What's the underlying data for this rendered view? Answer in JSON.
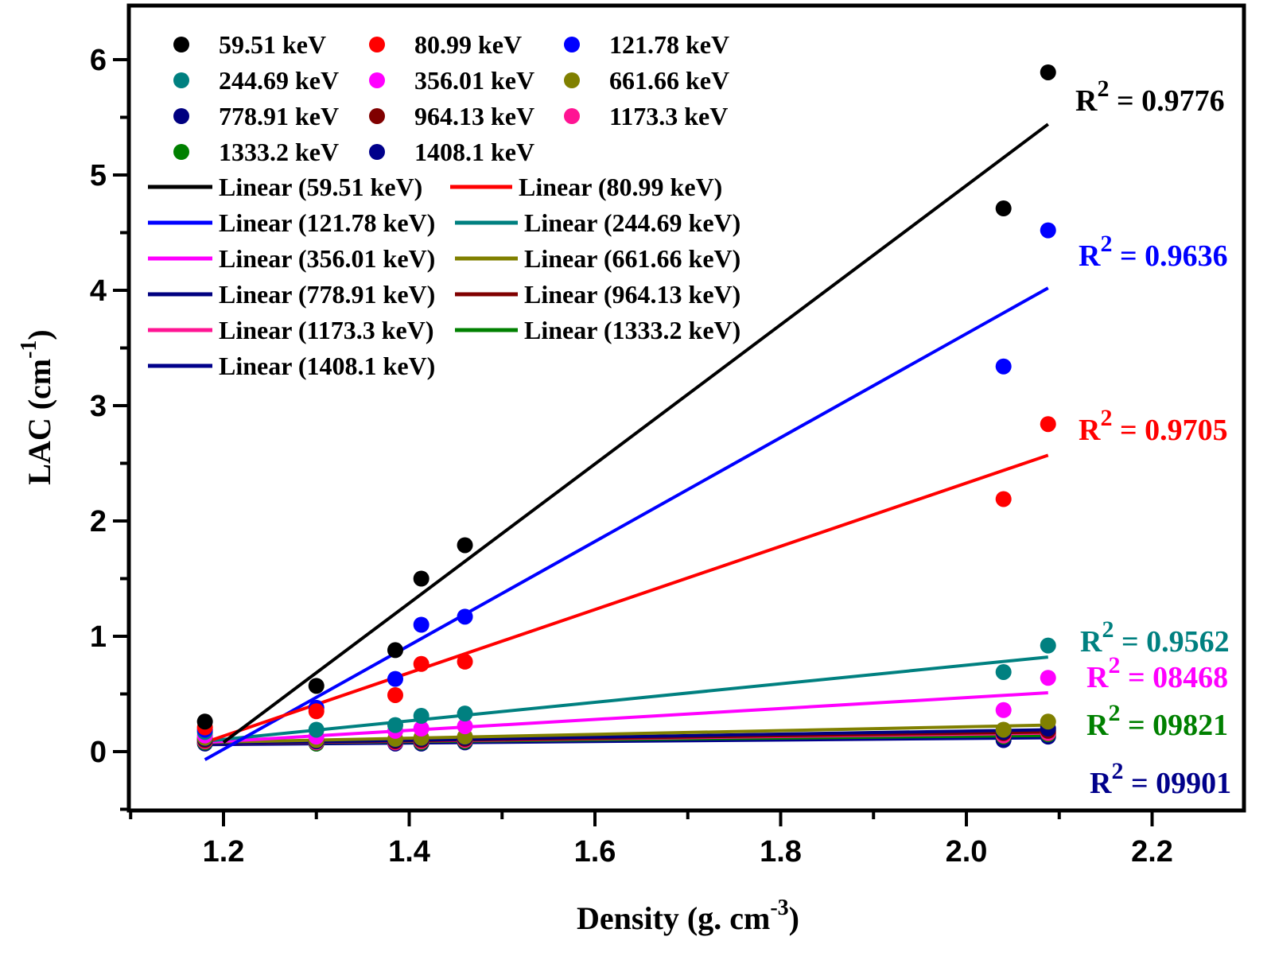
{
  "chart_data": {
    "type": "scatter",
    "xlabel": "Density (g. cm",
    "xlabel_sup": "-3",
    "xlabel_end": ")",
    "ylabel": "LAC (cm",
    "ylabel_sup": "-1",
    "ylabel_end": ")",
    "xlim": [
      1.1,
      2.3
    ],
    "ylim": [
      -0.5,
      6.5
    ],
    "x_ticks": [
      "1.2",
      "1.4",
      "1.6",
      "1.8",
      "2.0",
      "2.2"
    ],
    "y_ticks": [
      "0",
      "1",
      "2",
      "3",
      "4",
      "5",
      "6"
    ],
    "x_tick_values": [
      1.2,
      1.4,
      1.6,
      1.8,
      2.0,
      2.2
    ],
    "y_tick_values": [
      0,
      1,
      2,
      3,
      4,
      5,
      6
    ],
    "x": [
      1.18,
      1.3,
      1.385,
      1.413,
      1.46,
      2.04,
      2.088
    ],
    "legend_position": "top-left",
    "grid": false,
    "series": [
      {
        "name": "59.51 keV",
        "color": "#000000",
        "values": [
          0.26,
          0.57,
          0.88,
          1.5,
          1.79,
          4.71,
          5.89
        ],
        "fit_name": "Linear (59.51 keV)",
        "fit": [
          [
            1.2,
            0.08
          ],
          [
            2.088,
            5.44
          ]
        ],
        "r2_label": "R",
        "r2_sup": "2",
        "r2_value": " = 0.9776"
      },
      {
        "name": "80.99 keV",
        "color": "#ff0000",
        "values": [
          0.21,
          0.35,
          0.49,
          0.76,
          0.78,
          2.19,
          2.84
        ],
        "fit_name": "Linear (80.99 keV)",
        "fit": [
          [
            1.18,
            0.08
          ],
          [
            2.088,
            2.57
          ]
        ],
        "r2_label": "R",
        "r2_sup": "2",
        "r2_value": " = 0.9705"
      },
      {
        "name": "121.78 keV",
        "color": "#0000ff",
        "values": [
          0.19,
          0.38,
          0.63,
          1.1,
          1.17,
          3.34,
          4.52
        ],
        "fit_name": "Linear (121.78 keV)",
        "fit": [
          [
            1.18,
            -0.07
          ],
          [
            2.088,
            4.02
          ]
        ],
        "r2_label": "R",
        "r2_sup": "2",
        "r2_value": " = 0.9636"
      },
      {
        "name": "244.69 keV",
        "color": "#008080",
        "values": [
          0.17,
          0.19,
          0.23,
          0.31,
          0.33,
          0.69,
          0.92
        ],
        "fit_name": "Linear (244.69 keV)",
        "fit": [
          [
            1.18,
            0.09
          ],
          [
            2.088,
            0.82
          ]
        ],
        "r2_label": "R",
        "r2_sup": "2",
        "r2_value": " = 0.9562"
      },
      {
        "name": "356.01 keV",
        "color": "#ff00ff",
        "values": [
          0.14,
          0.13,
          0.18,
          0.2,
          0.22,
          0.36,
          0.64
        ],
        "fit_name": "Linear (356.01 keV)",
        "fit": [
          [
            1.18,
            0.08
          ],
          [
            2.088,
            0.51
          ]
        ],
        "r2_label": "R",
        "r2_sup": "2",
        "r2_value": " = 08468"
      },
      {
        "name": "661.66 keV",
        "color": "#808000",
        "values": [
          0.12,
          0.1,
          0.11,
          0.12,
          0.13,
          0.19,
          0.26
        ],
        "fit_name": "Linear (661.66 keV)",
        "fit": [
          [
            1.18,
            0.08
          ],
          [
            2.088,
            0.23
          ]
        ]
      },
      {
        "name": "778.91 keV",
        "color": "#000080",
        "values": [
          0.11,
          0.09,
          0.1,
          0.11,
          0.12,
          0.17,
          0.2
        ],
        "fit_name": "Linear (778.91 keV)",
        "fit": [
          [
            1.18,
            0.07
          ],
          [
            2.088,
            0.19
          ]
        ]
      },
      {
        "name": "964.13 keV",
        "color": "#800000",
        "values": [
          0.1,
          0.09,
          0.09,
          0.1,
          0.11,
          0.16,
          0.18
        ],
        "fit_name": "Linear (964.13 keV)",
        "fit": [
          [
            1.18,
            0.07
          ],
          [
            2.088,
            0.17
          ]
        ]
      },
      {
        "name": "1173.3 keV",
        "color": "#ff1493",
        "values": [
          0.09,
          0.08,
          0.08,
          0.09,
          0.1,
          0.14,
          0.16
        ],
        "fit_name": "Linear (1173.3 keV)",
        "fit": [
          [
            1.18,
            0.07
          ],
          [
            2.088,
            0.16
          ]
        ]
      },
      {
        "name": "1333.2 keV",
        "color": "#008000",
        "values": [
          0.08,
          0.07,
          0.08,
          0.08,
          0.09,
          0.13,
          0.15
        ],
        "fit_name": "Linear (1333.2 keV)",
        "fit": [
          [
            1.18,
            0.07
          ],
          [
            2.088,
            0.14
          ]
        ],
        "r2_label": "R",
        "r2_sup": "2",
        "r2_value": " = 09821"
      },
      {
        "name": "1408.1 keV",
        "color": "#00008b",
        "values": [
          0.07,
          0.07,
          0.07,
          0.07,
          0.08,
          0.1,
          0.13
        ],
        "fit_name": "Linear (1408.1 keV)",
        "fit": [
          [
            1.18,
            0.06
          ],
          [
            2.088,
            0.12
          ]
        ],
        "r2_label": "R",
        "r2_sup": "2",
        "r2_value": " = 09901"
      }
    ]
  }
}
